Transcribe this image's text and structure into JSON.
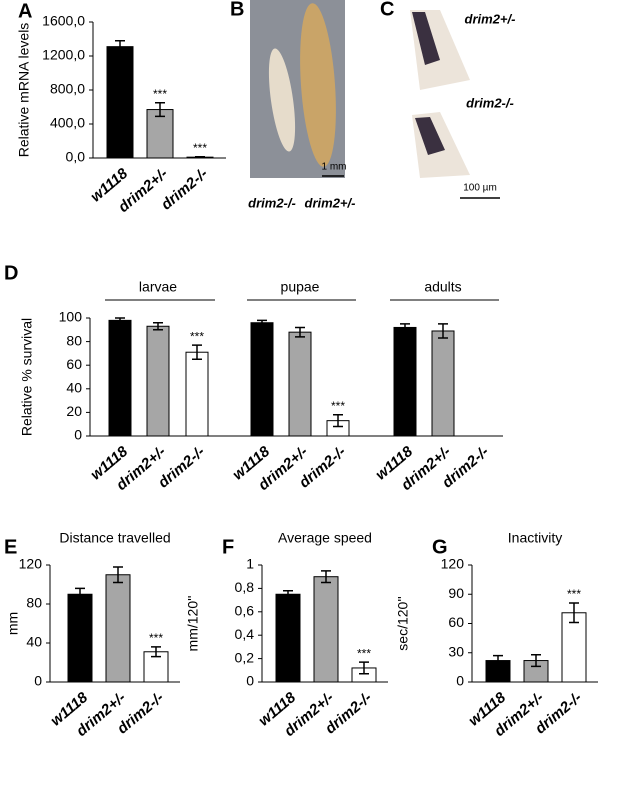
{
  "chart_data": [
    {
      "type": "bar",
      "panel": "A",
      "y_label": "Relative mRNA levels",
      "categories": [
        "w1118",
        "drim2+/-",
        "drim2-/-"
      ],
      "values": [
        1310,
        570,
        10
      ],
      "errors": [
        70,
        80,
        5
      ],
      "annotations": [
        null,
        "***",
        "***"
      ],
      "colors": [
        "#000000",
        "#a6a6a6",
        "#ffffff"
      ],
      "ylim": [
        0,
        1600
      ],
      "yticks": [
        {
          "value": 0,
          "label": "0,0"
        },
        {
          "value": 400,
          "label": "400,0"
        },
        {
          "value": 800,
          "label": "800,0"
        },
        {
          "value": 1200,
          "label": "1200,0"
        },
        {
          "value": 1600,
          "label": "1600,0"
        }
      ]
    },
    {
      "type": "bar",
      "panel": "D",
      "y_label": "Relative % survival",
      "groups": [
        {
          "name": "larvae",
          "categories": [
            "w1118",
            "drim2+/-",
            "drim2-/-"
          ],
          "values": [
            98,
            93,
            71
          ],
          "errors": [
            2,
            3,
            6
          ],
          "annotations": [
            null,
            null,
            "***"
          ]
        },
        {
          "name": "pupae",
          "categories": [
            "w1118",
            "drim2+/-",
            "drim2-/-"
          ],
          "values": [
            96,
            88,
            13
          ],
          "errors": [
            2,
            4,
            5
          ],
          "annotations": [
            null,
            null,
            "***"
          ]
        },
        {
          "name": "adults",
          "categories": [
            "w1118",
            "drim2+/-",
            "drim2-/-"
          ],
          "values": [
            92,
            89,
            null
          ],
          "errors": [
            3,
            6,
            null
          ],
          "annotations": [
            null,
            null,
            null
          ]
        }
      ],
      "colors": [
        "#000000",
        "#a6a6a6",
        "#ffffff"
      ],
      "ylim": [
        0,
        100
      ],
      "yticks": [
        0,
        20,
        40,
        60,
        80,
        100
      ]
    },
    {
      "type": "bar",
      "panel": "E",
      "title": "Distance travelled",
      "y_label": "mm",
      "categories": [
        "w1118",
        "drim2+/-",
        "drim2-/-"
      ],
      "values": [
        90,
        110,
        31
      ],
      "errors": [
        6,
        8,
        5
      ],
      "annotations": [
        null,
        null,
        "***"
      ],
      "colors": [
        "#000000",
        "#a6a6a6",
        "#ffffff"
      ],
      "ylim": [
        0,
        120
      ],
      "yticks": [
        0,
        40,
        80,
        120
      ]
    },
    {
      "type": "bar",
      "panel": "F",
      "title": "Average speed",
      "y_label": "mm/120''",
      "categories": [
        "w1118",
        "drim2+/-",
        "drim2-/-"
      ],
      "values": [
        0.75,
        0.9,
        0.12
      ],
      "errors": [
        0.03,
        0.05,
        0.05
      ],
      "annotations": [
        null,
        null,
        "***"
      ],
      "colors": [
        "#000000",
        "#a6a6a6",
        "#ffffff"
      ],
      "ylim": [
        0,
        1
      ],
      "yticks": [
        0,
        {
          "value": 0.2,
          "label": "0,2"
        },
        {
          "value": 0.4,
          "label": "0,4"
        },
        {
          "value": 0.6,
          "label": "0,6"
        },
        {
          "value": 0.8,
          "label": "0,8"
        },
        1
      ]
    },
    {
      "type": "bar",
      "panel": "G",
      "title": "Inactivity",
      "y_label": "sec/120''",
      "categories": [
        "w1118",
        "drim2+/-",
        "drim2-/-"
      ],
      "values": [
        22,
        22,
        71
      ],
      "errors": [
        5,
        6,
        10
      ],
      "annotations": [
        null,
        null,
        "***"
      ],
      "colors": [
        "#000000",
        "#a6a6a6",
        "#ffffff"
      ],
      "ylim": [
        0,
        120
      ],
      "yticks": [
        0,
        30,
        60,
        90,
        120
      ]
    }
  ],
  "images": [
    {
      "panel": "B",
      "labels": [
        "drim2-/-",
        "drim2+/-"
      ],
      "scale": "1 mm"
    },
    {
      "panel": "C",
      "labels": [
        "drim2+/-",
        "drim2-/-"
      ],
      "scale": "100 µm"
    }
  ]
}
